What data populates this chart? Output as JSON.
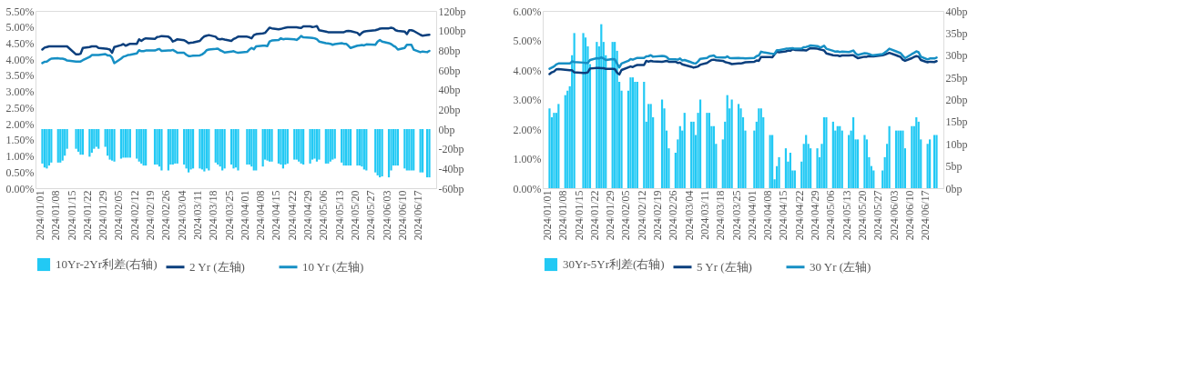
{
  "chart_data": [
    {
      "type": "line",
      "legend": "bottom",
      "line_style": "solid",
      "marker": "none",
      "x": [
        "2024-01-01",
        "2024-01-02",
        "2024-01-03",
        "2024-01-04",
        "2024-01-05",
        "2024-01-08",
        "2024-01-09",
        "2024-01-10",
        "2024-01-11",
        "2024-01-12",
        "2024-01-15",
        "2024-01-16",
        "2024-01-17",
        "2024-01-18",
        "2024-01-19",
        "2024-01-22",
        "2024-01-23",
        "2024-01-24",
        "2024-01-25",
        "2024-01-26",
        "2024-01-29",
        "2024-01-30",
        "2024-01-31",
        "2024-02-01",
        "2024-02-02",
        "2024-02-05",
        "2024-02-06",
        "2024-02-07",
        "2024-02-08",
        "2024-02-09",
        "2024-02-12",
        "2024-02-13",
        "2024-02-14",
        "2024-02-15",
        "2024-02-16",
        "2024-02-19",
        "2024-02-20",
        "2024-02-21",
        "2024-02-22",
        "2024-02-23",
        "2024-02-26",
        "2024-02-27",
        "2024-02-28",
        "2024-02-29",
        "2024-03-01",
        "2024-03-04",
        "2024-03-05",
        "2024-03-06",
        "2024-03-07",
        "2024-03-08",
        "2024-03-11",
        "2024-03-12",
        "2024-03-13",
        "2024-03-14",
        "2024-03-15",
        "2024-03-18",
        "2024-03-19",
        "2024-03-20",
        "2024-03-21",
        "2024-03-22",
        "2024-03-25",
        "2024-03-26",
        "2024-03-27",
        "2024-03-28",
        "2024-03-29",
        "2024-04-01",
        "2024-04-02",
        "2024-04-03",
        "2024-04-04",
        "2024-04-05",
        "2024-04-08",
        "2024-04-09",
        "2024-04-10",
        "2024-04-11",
        "2024-04-12",
        "2024-04-15",
        "2024-04-16",
        "2024-04-17",
        "2024-04-18",
        "2024-04-19",
        "2024-04-22",
        "2024-04-23",
        "2024-04-24",
        "2024-04-25",
        "2024-04-26",
        "2024-04-29",
        "2024-04-30",
        "2024-05-01",
        "2024-05-02",
        "2024-05-03",
        "2024-05-06",
        "2024-05-07",
        "2024-05-08",
        "2024-05-09",
        "2024-05-10",
        "2024-05-13",
        "2024-05-14",
        "2024-05-15",
        "2024-05-16",
        "2024-05-17",
        "2024-05-20",
        "2024-05-21",
        "2024-05-22",
        "2024-05-23",
        "2024-05-24",
        "2024-05-27",
        "2024-05-28",
        "2024-05-29",
        "2024-05-30",
        "2024-05-31",
        "2024-06-03",
        "2024-06-04",
        "2024-06-05",
        "2024-06-06",
        "2024-06-07",
        "2024-06-10",
        "2024-06-11",
        "2024-06-12",
        "2024-06-13",
        "2024-06-14",
        "2024-06-17",
        "2024-06-18",
        "2024-06-19",
        "2024-06-20",
        "2024-06-21"
      ],
      "xlim": [
        "2023-12-31",
        "2024-06-22"
      ],
      "xticks": [
        {
          "value": "2024-01-01",
          "label": "2024/01/01"
        },
        {
          "value": "2024-01-08",
          "label": "2024/01/08"
        },
        {
          "value": "2024-01-15",
          "label": "2024/01/15"
        },
        {
          "value": "2024-01-22",
          "label": "2024/01/22"
        },
        {
          "value": "2024-01-29",
          "label": "2024/01/29"
        },
        {
          "value": "2024-02-05",
          "label": "2024/02/05"
        },
        {
          "value": "2024-02-12",
          "label": "2024/02/12"
        },
        {
          "value": "2024-02-19",
          "label": "2024/02/19"
        },
        {
          "value": "2024-02-26",
          "label": "2024/02/26"
        },
        {
          "value": "2024-03-04",
          "label": "2024/03/04"
        },
        {
          "value": "2024-03-11",
          "label": "2024/03/11"
        },
        {
          "value": "2024-03-18",
          "label": "2024/03/18"
        },
        {
          "value": "2024-03-25",
          "label": "2024/03/25"
        },
        {
          "value": "2024-04-01",
          "label": "2024/04/01"
        },
        {
          "value": "2024-04-08",
          "label": "2024/04/08"
        },
        {
          "value": "2024-04-15",
          "label": "2024/04/15"
        },
        {
          "value": "2024-04-22",
          "label": "2024/04/22"
        },
        {
          "value": "2024-04-29",
          "label": "2024/04/29"
        },
        {
          "value": "2024-05-06",
          "label": "2024/05/06"
        },
        {
          "value": "2024-05-13",
          "label": "2024/05/13"
        },
        {
          "value": "2024-05-20",
          "label": "2024/05/20"
        },
        {
          "value": "2024-05-27",
          "label": "2024/05/27"
        },
        {
          "value": "2024-06-03",
          "label": "2024/06/03"
        },
        {
          "value": "2024-06-10",
          "label": "2024/06/10"
        },
        {
          "value": "2024-06-17",
          "label": "2024/06/17"
        }
      ],
      "ylim": [
        0,
        5.5
      ],
      "yticks": [
        {
          "value": 0,
          "label": "0.00%"
        },
        {
          "value": 0.5,
          "label": "0.50%"
        },
        {
          "value": 1,
          "label": "1.00%"
        },
        {
          "value": 1.5,
          "label": "1.50%"
        },
        {
          "value": 2,
          "label": "2.00%"
        },
        {
          "value": 2.5,
          "label": "2.50%"
        },
        {
          "value": 3,
          "label": "3.00%"
        },
        {
          "value": 3.5,
          "label": "3.50%"
        },
        {
          "value": 4,
          "label": "4.00%"
        },
        {
          "value": 4.5,
          "label": "4.50%"
        },
        {
          "value": 5,
          "label": "5.00%"
        },
        {
          "value": 5.5,
          "label": "5.50%"
        }
      ],
      "y2lim": [
        -60,
        120
      ],
      "y2ticks": [
        {
          "value": -60,
          "label": "-60bp"
        },
        {
          "value": -40,
          "label": "-40bp"
        },
        {
          "value": -20,
          "label": "-20bp"
        },
        {
          "value": 0,
          "label": "0bp"
        },
        {
          "value": 20,
          "label": "20bp"
        },
        {
          "value": 40,
          "label": "40bp"
        },
        {
          "value": 60,
          "label": "60bp"
        },
        {
          "value": 80,
          "label": "80bp"
        },
        {
          "value": 100,
          "label": "100bp"
        },
        {
          "value": 120,
          "label": "120bp"
        }
      ],
      "series": [
        {
          "name": "10Yr-2Yr利差(右轴)",
          "type": "bar",
          "axis": "y2",
          "color": "#22c9f4",
          "values": [
            -35,
            -39,
            -40,
            -37,
            -34,
            -34,
            -34,
            -32,
            -27,
            -20,
            null,
            -20,
            -23,
            -26,
            -26,
            -28,
            -24,
            -20,
            -18,
            -20,
            -18,
            -27,
            -31,
            -32,
            -33,
            -30,
            -29,
            -29,
            -29,
            -29,
            -30,
            -33,
            -35,
            -37,
            -37,
            null,
            -36,
            -36,
            -38,
            -42,
            -42,
            -36,
            -36,
            -35,
            -35,
            -36,
            -40,
            -44,
            -41,
            -40,
            -40,
            -41,
            -43,
            -40,
            -42,
            -34,
            -36,
            -38,
            -42,
            -40,
            -36,
            -40,
            -39,
            -42,
            null,
            -36,
            -36,
            -38,
            -42,
            -42,
            -38,
            -31,
            -32,
            -33,
            -33,
            -35,
            -36,
            -40,
            -36,
            -35,
            -31,
            -31,
            -33,
            -35,
            -36,
            -35,
            -31,
            -30,
            -33,
            -31,
            -35,
            -35,
            -33,
            -31,
            -30,
            -34,
            -37,
            -37,
            -37,
            -37,
            -37,
            -37,
            -38,
            -41,
            -42,
            null,
            -44,
            -47,
            -49,
            -48,
            -49,
            -42,
            -37,
            -37,
            -37,
            -40,
            -42,
            -42,
            -42,
            -42,
            -44,
            -44,
            null,
            -49,
            -49
          ]
        },
        {
          "name": "2 Yr (左轴)",
          "color": "#0b3f7d",
          "values": [
            4.3,
            4.36,
            4.38,
            4.4,
            4.4,
            4.4,
            4.4,
            4.4,
            4.4,
            4.4,
            null,
            4.15,
            4.15,
            4.17,
            4.35,
            4.38,
            4.4,
            4.4,
            4.4,
            4.35,
            4.33,
            4.32,
            4.3,
            4.2,
            4.38,
            4.44,
            4.47,
            4.42,
            4.45,
            4.48,
            4.48,
            4.62,
            4.57,
            4.62,
            4.65,
            null,
            4.63,
            4.69,
            4.7,
            4.72,
            4.7,
            4.65,
            4.55,
            4.58,
            4.62,
            4.59,
            4.55,
            4.5,
            4.51,
            4.52,
            4.57,
            4.65,
            4.71,
            4.73,
            4.75,
            4.7,
            4.63,
            4.62,
            4.63,
            4.61,
            4.57,
            4.63,
            4.66,
            4.7,
            null,
            4.7,
            4.68,
            4.65,
            4.75,
            4.78,
            4.8,
            4.82,
            4.9,
            4.98,
            4.96,
            4.93,
            4.94,
            4.96,
            4.98,
            4.99,
            4.99,
            4.99,
            4.98,
            4.97,
            5.02,
            5.02,
            5.0,
            5.01,
            5.03,
            4.9,
            4.86,
            4.84,
            4.84,
            4.84,
            4.84,
            4.84,
            4.84,
            4.87,
            4.88,
            4.87,
            4.82,
            4.75,
            4.82,
            4.86,
            4.87,
            null,
            4.9,
            4.92,
            4.95,
            4.96,
            4.96,
            4.98,
            4.96,
            4.9,
            4.88,
            4.86,
            4.78,
            4.9,
            4.9,
            4.88,
            4.76,
            4.73,
            null,
            4.75,
            4.76
          ]
        },
        {
          "name": "10 Yr (左轴)",
          "color": "#168fc4",
          "values": [
            3.88,
            3.92,
            3.93,
            3.98,
            4.02,
            4.03,
            4.02,
            4.02,
            4.0,
            3.96,
            null,
            3.93,
            3.93,
            3.93,
            3.97,
            4.07,
            4.13,
            4.13,
            4.13,
            4.13,
            4.16,
            4.12,
            4.12,
            4.05,
            3.88,
            4.02,
            4.08,
            4.1,
            4.13,
            4.14,
            4.18,
            4.28,
            4.25,
            4.25,
            4.27,
            null,
            4.27,
            4.3,
            4.32,
            4.26,
            4.27,
            4.27,
            4.29,
            4.25,
            4.2,
            4.2,
            4.14,
            4.1,
            4.1,
            4.11,
            4.12,
            4.15,
            4.2,
            4.28,
            4.3,
            4.32,
            4.33,
            4.28,
            4.25,
            4.21,
            4.24,
            4.25,
            4.22,
            4.2,
            null,
            4.23,
            4.3,
            4.35,
            4.31,
            4.4,
            4.42,
            4.42,
            4.41,
            4.55,
            4.58,
            4.6,
            4.65,
            4.62,
            4.63,
            4.63,
            4.62,
            4.6,
            4.65,
            4.72,
            4.68,
            4.67,
            4.66,
            4.65,
            4.62,
            4.55,
            4.5,
            4.49,
            4.48,
            4.45,
            4.47,
            4.5,
            4.48,
            4.48,
            4.42,
            4.35,
            4.42,
            4.43,
            4.44,
            4.43,
            4.46,
            null,
            4.45,
            4.55,
            4.6,
            4.55,
            4.5,
            4.47,
            4.42,
            4.38,
            4.3,
            4.35,
            4.45,
            4.45,
            4.45,
            4.3,
            4.22,
            4.24,
            null,
            4.22,
            4.26
          ]
        }
      ]
    },
    {
      "type": "line",
      "legend": "bottom",
      "line_style": "solid",
      "marker": "none",
      "x": [
        "2024-01-01",
        "2024-01-02",
        "2024-01-03",
        "2024-01-04",
        "2024-01-05",
        "2024-01-08",
        "2024-01-09",
        "2024-01-10",
        "2024-01-11",
        "2024-01-12",
        "2024-01-15",
        "2024-01-16",
        "2024-01-17",
        "2024-01-18",
        "2024-01-19",
        "2024-01-22",
        "2024-01-23",
        "2024-01-24",
        "2024-01-25",
        "2024-01-26",
        "2024-01-29",
        "2024-01-30",
        "2024-01-31",
        "2024-02-01",
        "2024-02-02",
        "2024-02-05",
        "2024-02-06",
        "2024-02-07",
        "2024-02-08",
        "2024-02-09",
        "2024-02-12",
        "2024-02-13",
        "2024-02-14",
        "2024-02-15",
        "2024-02-16",
        "2024-02-19",
        "2024-02-20",
        "2024-02-21",
        "2024-02-22",
        "2024-02-23",
        "2024-02-26",
        "2024-02-27",
        "2024-02-28",
        "2024-02-29",
        "2024-03-01",
        "2024-03-04",
        "2024-03-05",
        "2024-03-06",
        "2024-03-07",
        "2024-03-08",
        "2024-03-11",
        "2024-03-12",
        "2024-03-13",
        "2024-03-14",
        "2024-03-15",
        "2024-03-18",
        "2024-03-19",
        "2024-03-20",
        "2024-03-21",
        "2024-03-22",
        "2024-03-25",
        "2024-03-26",
        "2024-03-27",
        "2024-03-28",
        "2024-03-29",
        "2024-04-01",
        "2024-04-02",
        "2024-04-03",
        "2024-04-04",
        "2024-04-05",
        "2024-04-08",
        "2024-04-09",
        "2024-04-10",
        "2024-04-11",
        "2024-04-12",
        "2024-04-15",
        "2024-04-16",
        "2024-04-17",
        "2024-04-18",
        "2024-04-19",
        "2024-04-22",
        "2024-04-23",
        "2024-04-24",
        "2024-04-25",
        "2024-04-26",
        "2024-04-29",
        "2024-04-30",
        "2024-05-01",
        "2024-05-02",
        "2024-05-03",
        "2024-05-06",
        "2024-05-07",
        "2024-05-08",
        "2024-05-09",
        "2024-05-10",
        "2024-05-13",
        "2024-05-14",
        "2024-05-15",
        "2024-05-16",
        "2024-05-17",
        "2024-05-20",
        "2024-05-21",
        "2024-05-22",
        "2024-05-23",
        "2024-05-24",
        "2024-05-27",
        "2024-05-28",
        "2024-05-29",
        "2024-05-30",
        "2024-05-31",
        "2024-06-03",
        "2024-06-04",
        "2024-06-05",
        "2024-06-06",
        "2024-06-07",
        "2024-06-10",
        "2024-06-11",
        "2024-06-12",
        "2024-06-13",
        "2024-06-14",
        "2024-06-17",
        "2024-06-18",
        "2024-06-19",
        "2024-06-20",
        "2024-06-21"
      ],
      "xlim": [
        "2023-12-31",
        "2024-06-22"
      ],
      "xticks": [
        {
          "value": "2024-01-01",
          "label": "2024/01/01"
        },
        {
          "value": "2024-01-08",
          "label": "2024/01/08"
        },
        {
          "value": "2024-01-15",
          "label": "2024/01/15"
        },
        {
          "value": "2024-01-22",
          "label": "2024/01/22"
        },
        {
          "value": "2024-01-29",
          "label": "2024/01/29"
        },
        {
          "value": "2024-02-05",
          "label": "2024/02/05"
        },
        {
          "value": "2024-02-12",
          "label": "2024/02/12"
        },
        {
          "value": "2024-02-19",
          "label": "2024/02/19"
        },
        {
          "value": "2024-02-26",
          "label": "2024/02/26"
        },
        {
          "value": "2024-03-04",
          "label": "2024/03/04"
        },
        {
          "value": "2024-03-11",
          "label": "2024/03/11"
        },
        {
          "value": "2024-03-18",
          "label": "2024/03/18"
        },
        {
          "value": "2024-03-25",
          "label": "2024/03/25"
        },
        {
          "value": "2024-04-01",
          "label": "2024/04/01"
        },
        {
          "value": "2024-04-08",
          "label": "2024/04/08"
        },
        {
          "value": "2024-04-15",
          "label": "2024/04/15"
        },
        {
          "value": "2024-04-22",
          "label": "2024/04/22"
        },
        {
          "value": "2024-04-29",
          "label": "2024/04/29"
        },
        {
          "value": "2024-05-06",
          "label": "2024/05/06"
        },
        {
          "value": "2024-05-13",
          "label": "2024/05/13"
        },
        {
          "value": "2024-05-20",
          "label": "2024/05/20"
        },
        {
          "value": "2024-05-27",
          "label": "2024/05/27"
        },
        {
          "value": "2024-06-03",
          "label": "2024/06/03"
        },
        {
          "value": "2024-06-10",
          "label": "2024/06/10"
        },
        {
          "value": "2024-06-17",
          "label": "2024/06/17"
        }
      ],
      "ylim": [
        0,
        6
      ],
      "yticks": [
        {
          "value": 0,
          "label": "0.00%"
        },
        {
          "value": 1,
          "label": "1.00%"
        },
        {
          "value": 2,
          "label": "2.00%"
        },
        {
          "value": 3,
          "label": "3.00%"
        },
        {
          "value": 4,
          "label": "4.00%"
        },
        {
          "value": 5,
          "label": "5.00%"
        },
        {
          "value": 6,
          "label": "6.00%"
        }
      ],
      "y2lim": [
        0,
        40
      ],
      "y2ticks": [
        {
          "value": 0,
          "label": "0bp"
        },
        {
          "value": 5,
          "label": "5bp"
        },
        {
          "value": 10,
          "label": "10bp"
        },
        {
          "value": 15,
          "label": "15bp"
        },
        {
          "value": 20,
          "label": "20bp"
        },
        {
          "value": 25,
          "label": "25bp"
        },
        {
          "value": 30,
          "label": "30bp"
        },
        {
          "value": 35,
          "label": "35bp"
        },
        {
          "value": 40,
          "label": "40bp"
        }
      ],
      "series": [
        {
          "name": "30Yr-5Yr利差(右轴)",
          "type": "bar",
          "axis": "y2",
          "color": "#22c9f4",
          "values": [
            18,
            16,
            17,
            17,
            19,
            21,
            22,
            23,
            30,
            35,
            null,
            35,
            34,
            32,
            28,
            33,
            32,
            37,
            33,
            30,
            33,
            33,
            31,
            24,
            22,
            22,
            25,
            25,
            24,
            24,
            24,
            15,
            19,
            19,
            16,
            null,
            20,
            18,
            13,
            9,
            8,
            11,
            14,
            13,
            17,
            15,
            15,
            12,
            17,
            20,
            17,
            17,
            14,
            14,
            10,
            11,
            15,
            21,
            18,
            20,
            19,
            18,
            16,
            13,
            null,
            13,
            15,
            18,
            18,
            16,
            12,
            12,
            2,
            5,
            7,
            9,
            6,
            8,
            4,
            4,
            6,
            10,
            12,
            10,
            9,
            9,
            7,
            10,
            16,
            16,
            15,
            13,
            14,
            14,
            13,
            12,
            13,
            16,
            11,
            11,
            12,
            11,
            7,
            5,
            4,
            null,
            4,
            7,
            10,
            14,
            13,
            13,
            13,
            13,
            9,
            14,
            14,
            16,
            15,
            11,
            10,
            11,
            null,
            12,
            12
          ]
        },
        {
          "name": "5 Yr (左轴)",
          "color": "#0b3f7d",
          "values": [
            3.86,
            3.92,
            3.95,
            4.02,
            4.03,
            4.01,
            4.0,
            3.99,
            3.99,
            3.92,
            null,
            3.9,
            3.9,
            3.92,
            4.05,
            4.07,
            4.07,
            4.06,
            4.06,
            4.04,
            4.04,
            4.03,
            3.91,
            3.85,
            4.0,
            4.09,
            4.12,
            4.1,
            4.14,
            4.17,
            4.17,
            4.31,
            4.28,
            4.31,
            4.29,
            null,
            4.28,
            4.29,
            4.31,
            4.28,
            4.28,
            4.24,
            4.25,
            4.19,
            4.17,
            4.11,
            4.08,
            4.1,
            4.12,
            4.18,
            4.24,
            4.29,
            4.34,
            4.35,
            4.33,
            4.31,
            4.27,
            4.25,
            4.23,
            4.2,
            4.22,
            4.22,
            4.24,
            4.26,
            null,
            4.28,
            4.32,
            4.31,
            4.44,
            4.44,
            4.44,
            4.43,
            4.53,
            4.62,
            4.6,
            4.63,
            4.66,
            4.65,
            4.7,
            4.68,
            4.67,
            4.67,
            4.66,
            4.7,
            4.74,
            4.72,
            4.7,
            4.68,
            4.66,
            4.56,
            4.5,
            4.49,
            4.49,
            4.47,
            4.49,
            4.49,
            4.5,
            4.5,
            4.45,
            4.4,
            4.45,
            4.45,
            4.47,
            4.46,
            4.46,
            null,
            4.5,
            4.52,
            4.55,
            4.58,
            4.5,
            4.47,
            4.44,
            4.35,
            4.31,
            4.4,
            4.44,
            4.47,
            4.45,
            4.34,
            4.26,
            4.28,
            null,
            4.27,
            4.3
          ]
        },
        {
          "name": "30 Yr (左轴)",
          "color": "#168fc4",
          "values": [
            4.04,
            4.08,
            4.12,
            4.19,
            4.22,
            4.22,
            4.22,
            4.22,
            4.29,
            4.27,
            null,
            4.25,
            4.24,
            4.24,
            4.34,
            4.4,
            4.39,
            4.43,
            4.39,
            4.34,
            4.37,
            4.36,
            4.22,
            4.09,
            4.22,
            4.31,
            4.37,
            4.35,
            4.38,
            4.41,
            4.41,
            4.46,
            4.47,
            4.5,
            4.45,
            null,
            4.48,
            4.47,
            4.44,
            4.37,
            4.36,
            4.35,
            4.39,
            4.32,
            4.34,
            4.26,
            4.23,
            4.22,
            4.29,
            4.38,
            4.41,
            4.46,
            4.48,
            4.49,
            4.43,
            4.42,
            4.42,
            4.46,
            4.41,
            4.4,
            4.41,
            4.4,
            4.4,
            4.39,
            null,
            4.41,
            4.47,
            4.49,
            4.62,
            4.6,
            4.56,
            4.55,
            4.55,
            4.67,
            4.67,
            4.72,
            4.72,
            4.73,
            4.74,
            4.72,
            4.73,
            4.77,
            4.78,
            4.8,
            4.83,
            4.81,
            4.77,
            4.78,
            4.82,
            4.72,
            4.65,
            4.62,
            4.63,
            4.61,
            4.62,
            4.61,
            4.63,
            4.66,
            4.56,
            4.51,
            4.57,
            4.56,
            4.54,
            4.51,
            4.5,
            null,
            4.54,
            4.59,
            4.65,
            4.72,
            4.63,
            4.6,
            4.57,
            4.48,
            4.4,
            4.54,
            4.58,
            4.63,
            4.6,
            4.45,
            4.36,
            4.39,
            null,
            4.39,
            4.42
          ]
        }
      ]
    }
  ]
}
